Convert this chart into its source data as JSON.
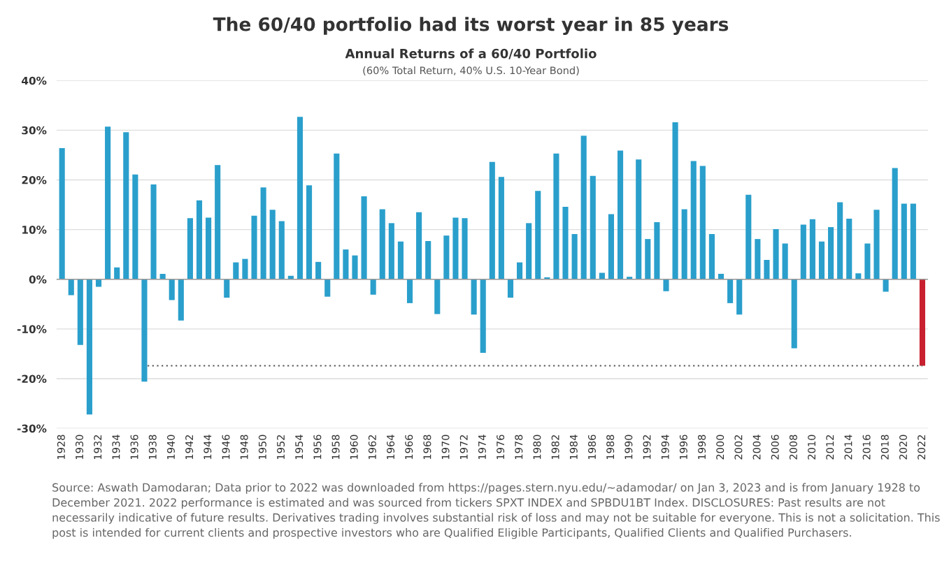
{
  "chart_data": {
    "type": "bar",
    "title": "The 60/40 portfolio had its worst year in 85 years",
    "subtitle": "Annual Returns of a 60/40 Portfolio",
    "annotations": [
      "(60% Total Return, 40% U.S. 10-Year Bond)",
      "Source: Aswath Damodaran; Data prior to 2022 was downloaded from https://pages.stern.nyu.edu/~adamodar/ on Jan 3, 2023 and is from January 1928 to December 2021. 2022 performance is estimated and was sourced from tickers SPXT INDEX and SPBDU1BT Index. DISCLOSURES: Past results are not necessarily indicative of future results. Derivatives trading involves substantial risk of loss and may not be suitable for everyone. This is not a solicitation. This post is intended for current clients and prospective investors who are Qualified Eligible Participants, Qualified Clients and Qualified Purchasers."
    ],
    "categories": [
      "1928",
      null,
      "1930",
      null,
      "1932",
      null,
      "1934",
      null,
      "1936",
      null,
      "1938",
      null,
      "1940",
      null,
      "1942",
      null,
      "1944",
      null,
      "1946",
      null,
      "1948",
      null,
      "1950",
      null,
      "1952",
      null,
      "1954",
      null,
      "1956",
      null,
      "1958",
      null,
      "1960",
      null,
      "1962",
      null,
      "1964",
      null,
      "1966",
      null,
      "1968",
      null,
      "1970",
      null,
      "1972",
      null,
      "1974",
      null,
      "1976",
      null,
      "1978",
      null,
      "1980",
      null,
      "1982",
      null,
      "1984",
      null,
      "1986",
      null,
      "1988",
      null,
      "1990",
      null,
      "1992",
      null,
      "1994",
      null,
      "1996",
      null,
      "1998",
      null,
      "2000",
      null,
      "2002",
      null,
      "2004",
      null,
      "2006",
      null,
      "2008",
      null,
      "2010",
      null,
      "2012",
      null,
      "2014",
      null,
      "2016",
      null,
      "2018",
      null,
      "2020",
      null,
      "2022"
    ],
    "values": [
      26.4,
      -3.2,
      -13.2,
      -27.2,
      -1.5,
      30.7,
      2.4,
      29.6,
      21.1,
      -20.6,
      19.1,
      1.1,
      -4.2,
      -8.3,
      12.3,
      15.9,
      12.4,
      23.0,
      -3.7,
      3.4,
      4.1,
      12.8,
      18.5,
      14.0,
      11.7,
      0.7,
      32.7,
      18.9,
      3.5,
      -3.5,
      25.3,
      6.0,
      4.8,
      16.7,
      -3.1,
      14.1,
      11.3,
      7.6,
      -4.8,
      13.5,
      7.7,
      -7.0,
      8.8,
      12.4,
      12.3,
      -7.1,
      -14.8,
      23.6,
      20.6,
      -3.7,
      3.4,
      11.3,
      17.8,
      0.4,
      25.3,
      14.6,
      9.1,
      28.9,
      20.8,
      1.3,
      13.1,
      25.9,
      0.5,
      24.1,
      8.1,
      11.5,
      -2.4,
      31.6,
      14.1,
      23.8,
      22.8,
      9.1,
      1.1,
      -4.8,
      -7.1,
      17.0,
      8.1,
      3.9,
      10.1,
      7.2,
      -13.9,
      11.0,
      12.1,
      7.6,
      10.5,
      15.5,
      12.2,
      1.2,
      7.2,
      14.0,
      -2.5,
      22.4,
      15.2,
      15.2,
      -17.4
    ],
    "colors": [
      "#2a9fcc",
      "#2a9fcc",
      "#2a9fcc",
      "#2a9fcc",
      "#2a9fcc",
      "#2a9fcc",
      "#2a9fcc",
      "#2a9fcc",
      "#2a9fcc",
      "#2a9fcc",
      "#2a9fcc",
      "#2a9fcc",
      "#2a9fcc",
      "#2a9fcc",
      "#2a9fcc",
      "#2a9fcc",
      "#2a9fcc",
      "#2a9fcc",
      "#2a9fcc",
      "#2a9fcc",
      "#2a9fcc",
      "#2a9fcc",
      "#2a9fcc",
      "#2a9fcc",
      "#2a9fcc",
      "#2a9fcc",
      "#2a9fcc",
      "#2a9fcc",
      "#2a9fcc",
      "#2a9fcc",
      "#2a9fcc",
      "#2a9fcc",
      "#2a9fcc",
      "#2a9fcc",
      "#2a9fcc",
      "#2a9fcc",
      "#2a9fcc",
      "#2a9fcc",
      "#2a9fcc",
      "#2a9fcc",
      "#2a9fcc",
      "#2a9fcc",
      "#2a9fcc",
      "#2a9fcc",
      "#2a9fcc",
      "#2a9fcc",
      "#2a9fcc",
      "#2a9fcc",
      "#2a9fcc",
      "#2a9fcc",
      "#2a9fcc",
      "#2a9fcc",
      "#2a9fcc",
      "#2a9fcc",
      "#2a9fcc",
      "#2a9fcc",
      "#2a9fcc",
      "#2a9fcc",
      "#2a9fcc",
      "#2a9fcc",
      "#2a9fcc",
      "#2a9fcc",
      "#2a9fcc",
      "#2a9fcc",
      "#2a9fcc",
      "#2a9fcc",
      "#2a9fcc",
      "#2a9fcc",
      "#2a9fcc",
      "#2a9fcc",
      "#2a9fcc",
      "#2a9fcc",
      "#2a9fcc",
      "#2a9fcc",
      "#2a9fcc",
      "#2a9fcc",
      "#2a9fcc",
      "#2a9fcc",
      "#2a9fcc",
      "#2a9fcc",
      "#2a9fcc",
      "#2a9fcc",
      "#2a9fcc",
      "#2a9fcc",
      "#2a9fcc",
      "#2a9fcc",
      "#2a9fcc",
      "#2a9fcc",
      "#2a9fcc",
      "#2a9fcc",
      "#2a9fcc",
      "#2a9fcc",
      "#2a9fcc",
      "#2a9fcc",
      "#c8202f"
    ],
    "ylim": [
      -30,
      40
    ],
    "yticks": [
      {
        "value": -30,
        "label": "-30%"
      },
      {
        "value": -20,
        "label": "-20%"
      },
      {
        "value": -10,
        "label": "-10%"
      },
      {
        "value": 0,
        "label": "0%"
      },
      {
        "value": 10,
        "label": "10%"
      },
      {
        "value": 20,
        "label": "20%"
      },
      {
        "value": 30,
        "label": "30%"
      },
      {
        "value": 40,
        "label": "40%"
      }
    ],
    "grid": "y",
    "ref_lines": [
      {
        "axis": "y",
        "value": -17.4,
        "color": "#555555",
        "line_style": "dotted"
      }
    ]
  }
}
